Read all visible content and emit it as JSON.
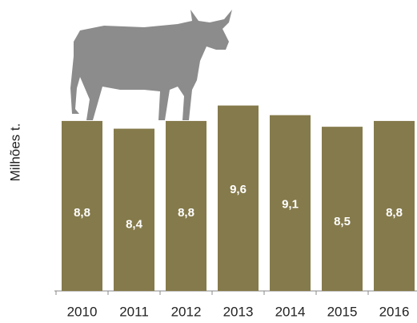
{
  "chart_data": {
    "type": "bar",
    "y_label": "Milhões t.",
    "categories": [
      "2010",
      "2011",
      "2012",
      "2013",
      "2014",
      "2015",
      "2016"
    ],
    "values": [
      8.8,
      8.4,
      8.8,
      9.6,
      9.1,
      8.5,
      8.8
    ],
    "value_labels": [
      "8,8",
      "8,4",
      "8,8",
      "9,6",
      "9,1",
      "8,5",
      "8,8"
    ],
    "color": "#857a4b"
  }
}
